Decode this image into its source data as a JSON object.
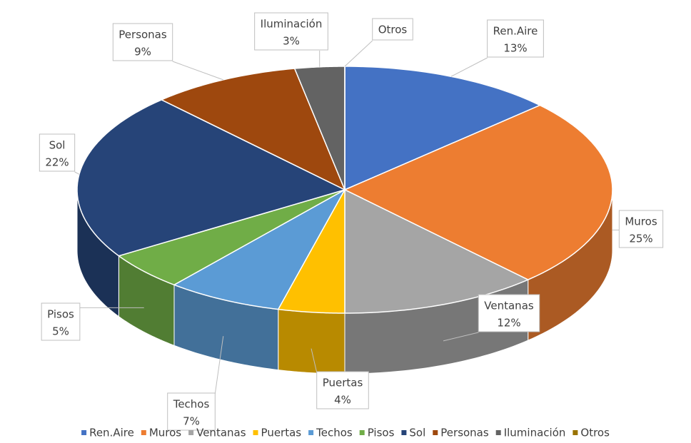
{
  "chart_data": {
    "type": "pie",
    "categories": [
      "Ren.Aire",
      "Muros",
      "Ventanas",
      "Puertas",
      "Techos",
      "Pisos",
      "Sol",
      "Personas",
      "Iluminación",
      "Otros"
    ],
    "values": [
      13,
      25,
      12,
      4,
      7,
      5,
      22,
      9,
      3,
      0
    ],
    "value_labels": [
      "13%",
      "25%",
      "12%",
      "4%",
      "7%",
      "5%",
      "22%",
      "9%",
      "3%",
      null
    ],
    "colors": [
      "#4472c4",
      "#ed7d31",
      "#a5a5a5",
      "#ffc000",
      "#5b9bd5",
      "#70ad47",
      "#264478",
      "#9e480e",
      "#636363",
      "#997300"
    ],
    "legend": "bottom"
  }
}
